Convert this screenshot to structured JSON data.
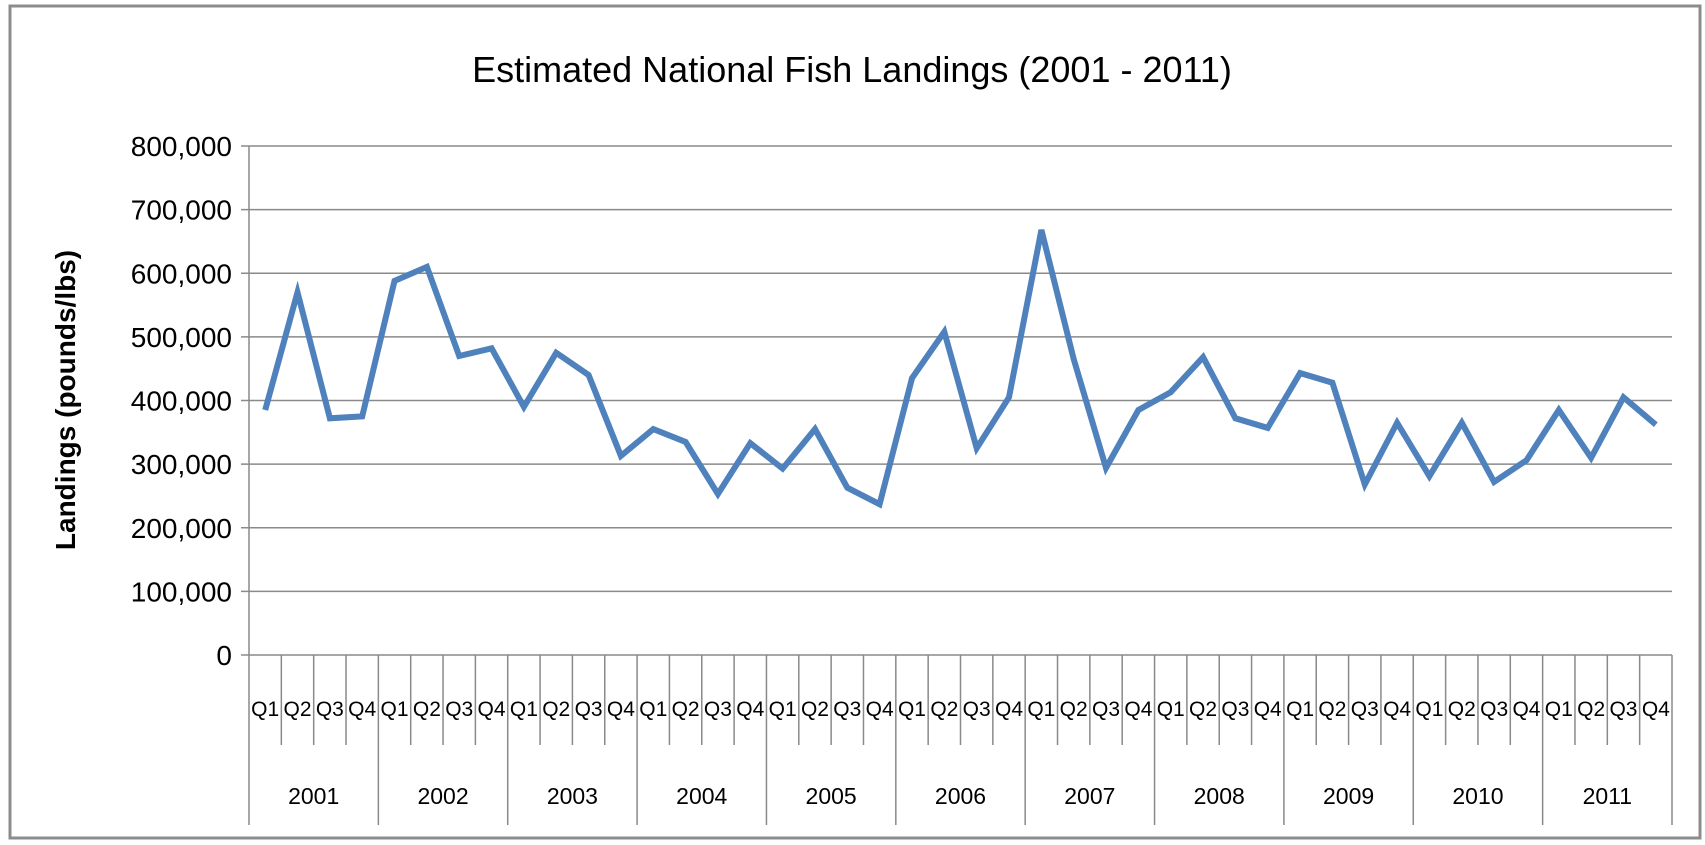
{
  "chart_data": {
    "type": "line",
    "title": "Estimated National Fish Landings (2001 - 2011)",
    "xlabel": "",
    "ylabel": "Landings (pounds/lbs)",
    "ylim": [
      0,
      800000
    ],
    "yticks": [
      "0",
      "100,000",
      "200,000",
      "300,000",
      "400,000",
      "500,000",
      "600,000",
      "700,000",
      "800,000"
    ],
    "grid": "horizontal",
    "legend": "none",
    "line_color": "#4F81BD",
    "years": [
      "2001",
      "2002",
      "2003",
      "2004",
      "2005",
      "2006",
      "2007",
      "2008",
      "2009",
      "2010",
      "2011"
    ],
    "quarter_labels": [
      "Q1",
      "Q2",
      "Q3",
      "Q4"
    ],
    "x": [
      "2001 Q1",
      "2001 Q2",
      "2001 Q3",
      "2001 Q4",
      "2002 Q1",
      "2002 Q2",
      "2002 Q3",
      "2002 Q4",
      "2003 Q1",
      "2003 Q2",
      "2003 Q3",
      "2003 Q4",
      "2004 Q1",
      "2004 Q2",
      "2004 Q3",
      "2004 Q4",
      "2005 Q1",
      "2005 Q2",
      "2005 Q3",
      "2005 Q4",
      "2006 Q1",
      "2006 Q2",
      "2006 Q3",
      "2006 Q4",
      "2007 Q1",
      "2007 Q2",
      "2007 Q3",
      "2007 Q4",
      "2008 Q1",
      "2008 Q2",
      "2008 Q3",
      "2008 Q4",
      "2009 Q1",
      "2009 Q2",
      "2009 Q3",
      "2009 Q4",
      "2010 Q1",
      "2010 Q2",
      "2010 Q3",
      "2010 Q4",
      "2011 Q1",
      "2011 Q2",
      "2011 Q3",
      "2011 Q4"
    ],
    "series": [
      {
        "values": [
          385000,
          570000,
          372000,
          375000,
          588000,
          610000,
          470000,
          482000,
          390000,
          475000,
          440000,
          313000,
          355000,
          335000,
          253000,
          333000,
          293000,
          355000,
          263000,
          237000,
          435000,
          508000,
          325000,
          405000,
          668000,
          465000,
          294000,
          385000,
          413000,
          468000,
          372000,
          357000,
          443000,
          428000,
          268000,
          365000,
          281000,
          365000,
          272000,
          306000,
          385000,
          310000,
          405000,
          362000
        ]
      }
    ]
  }
}
